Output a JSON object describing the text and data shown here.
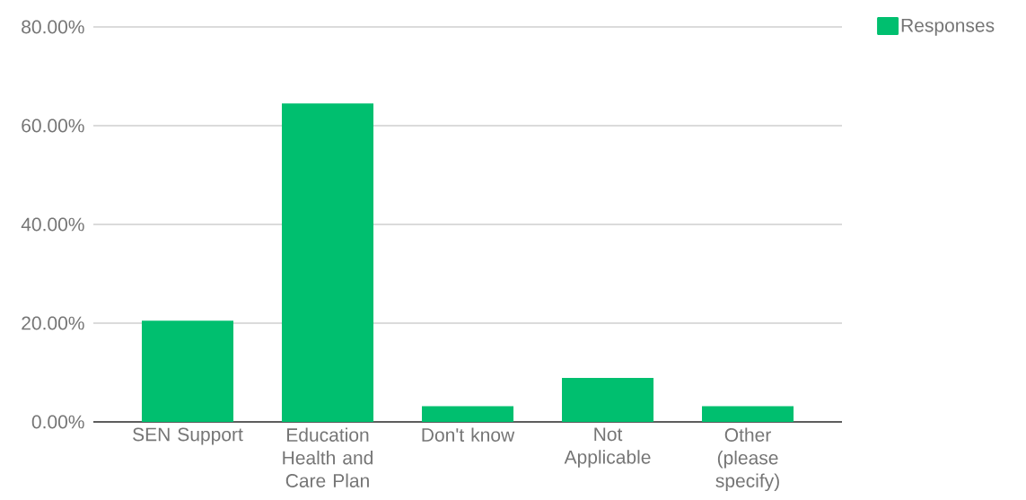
{
  "chart_data": {
    "type": "bar",
    "categories": [
      "SEN Support",
      "Education Health and Care Plan",
      "Don't know",
      "Not Applicable",
      "Other (please specify)"
    ],
    "series": [
      {
        "name": "Responses",
        "color": "#00bf6f",
        "values": [
          20.5,
          64.5,
          3.2,
          8.9,
          3.2
        ]
      }
    ],
    "ylim": [
      0,
      80
    ],
    "yticks": [
      {
        "value": 0,
        "label": "0.00%"
      },
      {
        "value": 20,
        "label": "20.00%"
      },
      {
        "value": 40,
        "label": "40.00%"
      },
      {
        "value": 60,
        "label": "60.00%"
      },
      {
        "value": 80,
        "label": "80.00%"
      }
    ],
    "grid": "y",
    "legend": "top right"
  }
}
